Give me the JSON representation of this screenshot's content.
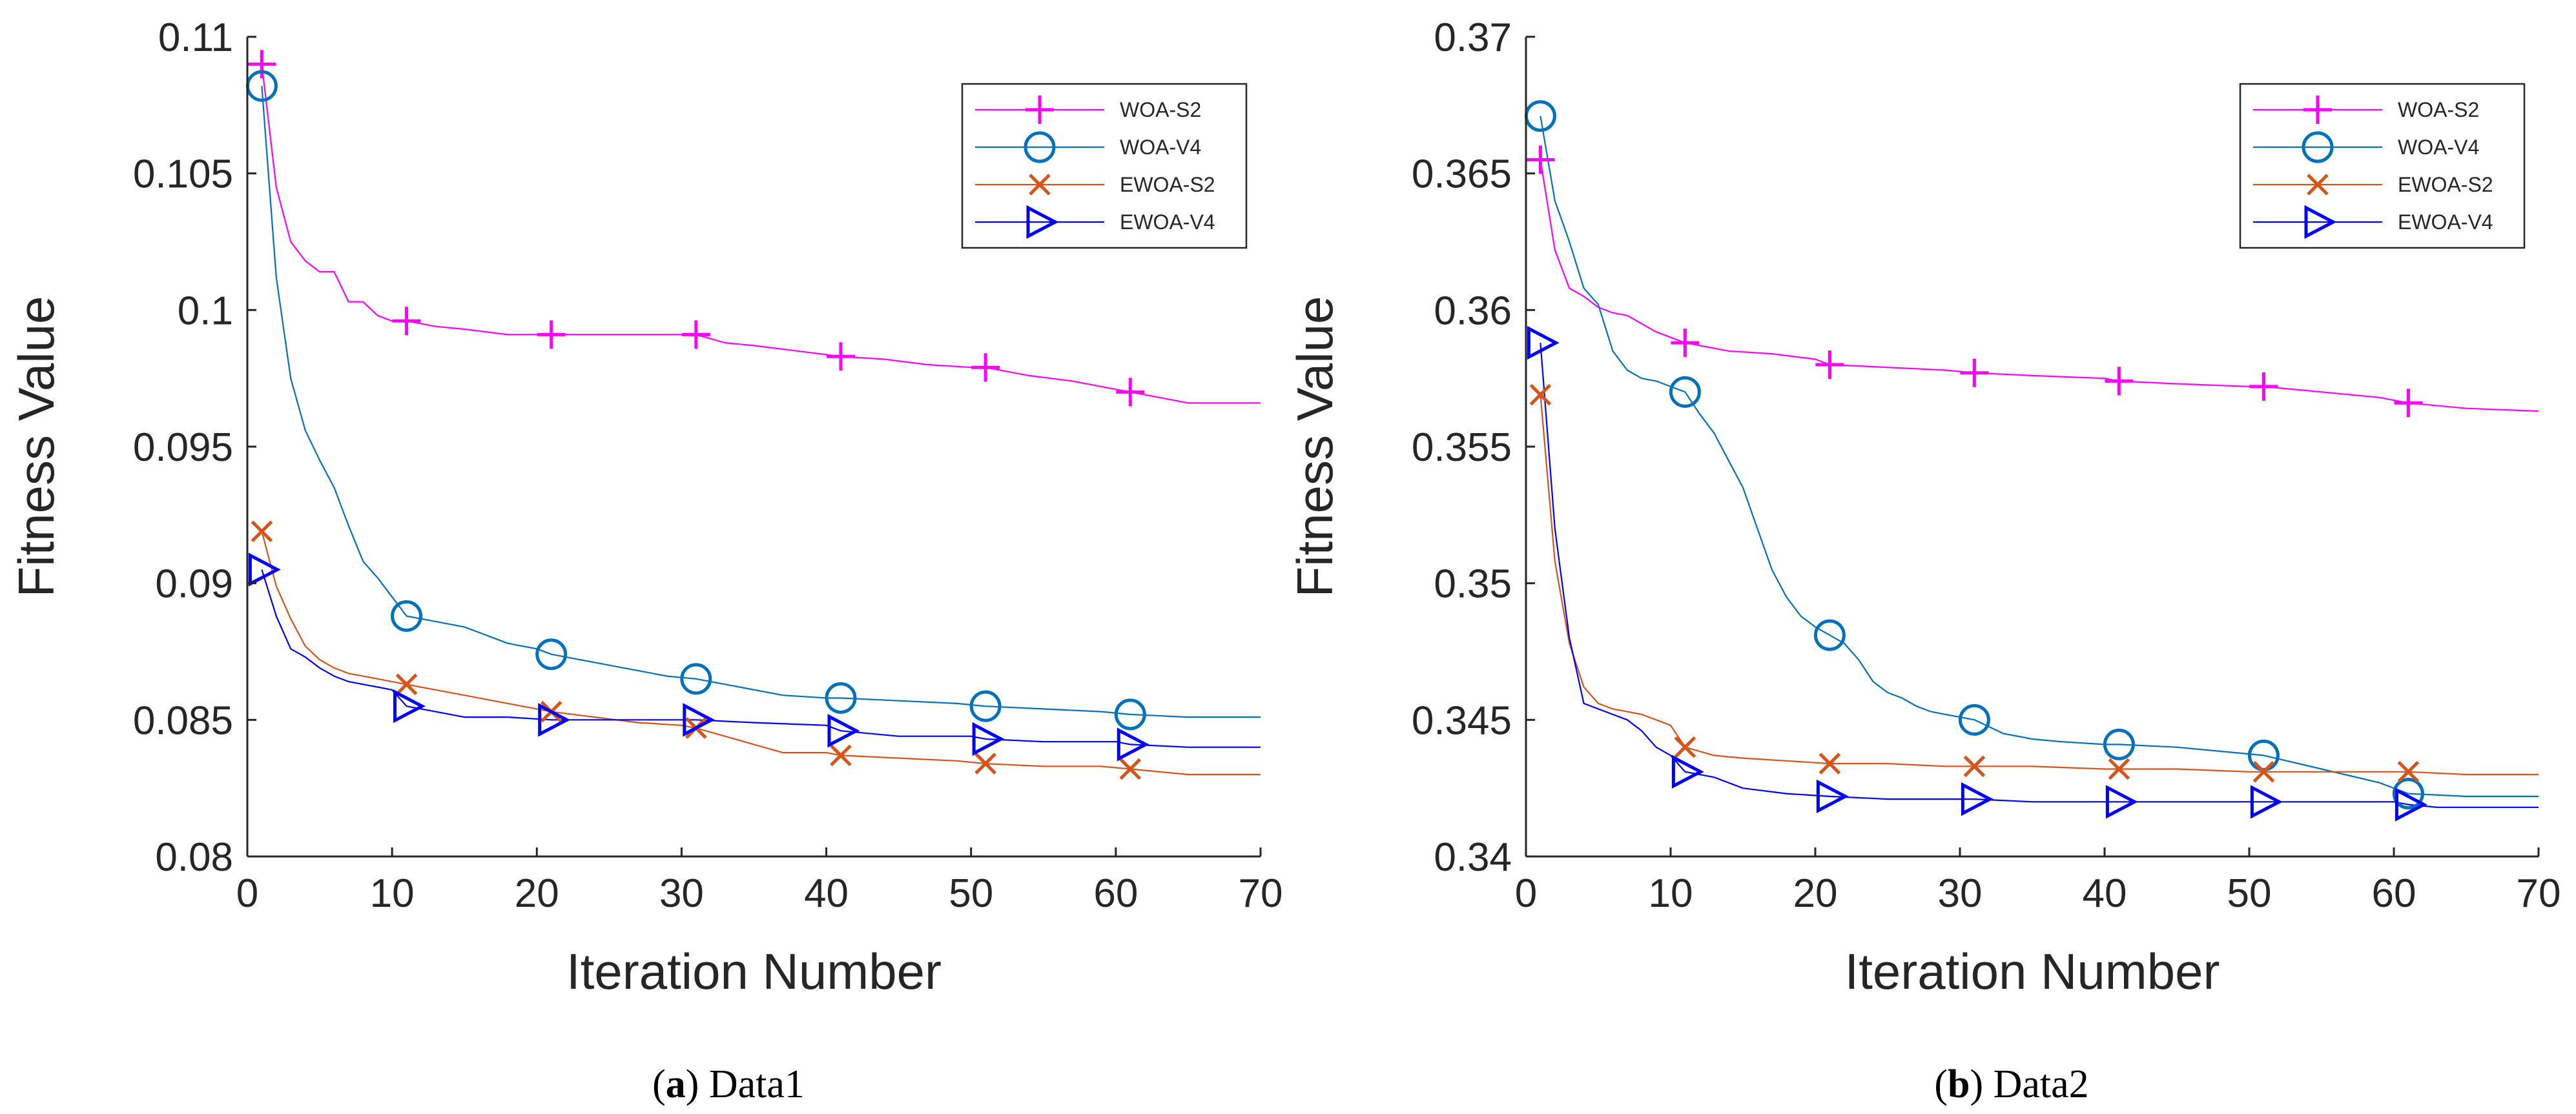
{
  "chart_data": [
    {
      "type": "line",
      "xlabel": "Iteration Number",
      "ylabel": "Fitness Value",
      "xlim": [
        0,
        70
      ],
      "ylim": [
        0.08,
        0.11
      ],
      "xticks": [
        0,
        10,
        20,
        30,
        40,
        50,
        60,
        70
      ],
      "yticks": [
        0.08,
        0.085,
        0.09,
        0.095,
        0.1,
        0.105,
        0.11
      ],
      "xtick_labels": [
        "0",
        "10",
        "20",
        "30",
        "40",
        "50",
        "60",
        "70"
      ],
      "ytick_labels": [
        "0.08",
        "0.085",
        "0.09",
        "0.095",
        "0.1",
        "0.105",
        "0.11"
      ],
      "grid": false,
      "legend_position": "top-right",
      "caption": {
        "letter": "a",
        "text": "Data1"
      },
      "series": [
        {
          "name": "WOA-S2",
          "color": "#FF00FF",
          "marker": "plus",
          "x": [
            1,
            2,
            3,
            4,
            5,
            6,
            7,
            8,
            9,
            10,
            11,
            13,
            15,
            18,
            20,
            21,
            25,
            29,
            31,
            33,
            35,
            38,
            41,
            44,
            47,
            50,
            51,
            54,
            57,
            59,
            61,
            63,
            65,
            70
          ],
          "y": [
            0.109,
            0.1045,
            0.1025,
            0.1018,
            0.1014,
            0.1014,
            0.1003,
            0.1003,
            0.0998,
            0.0996,
            0.0996,
            0.0994,
            0.0993,
            0.0991,
            0.0991,
            0.0991,
            0.0991,
            0.0991,
            0.0991,
            0.0988,
            0.0987,
            0.0985,
            0.0983,
            0.0982,
            0.098,
            0.0979,
            0.0979,
            0.0976,
            0.0974,
            0.0972,
            0.097,
            0.0968,
            0.0966,
            0.0966
          ]
        },
        {
          "name": "WOA-V4",
          "color": "#0072BD",
          "marker": "circle",
          "x": [
            1,
            2,
            3,
            4,
            5,
            6,
            7,
            8,
            9,
            10,
            11,
            13,
            15,
            18,
            20,
            21,
            24,
            27,
            29,
            31,
            34,
            37,
            40,
            41,
            45,
            49,
            51,
            55,
            59,
            61,
            65,
            70
          ],
          "y": [
            0.1082,
            0.1012,
            0.0975,
            0.0956,
            0.0945,
            0.0935,
            0.0921,
            0.0908,
            0.0902,
            0.0895,
            0.0888,
            0.0886,
            0.0884,
            0.0878,
            0.0876,
            0.0874,
            0.0871,
            0.0868,
            0.0866,
            0.0865,
            0.0862,
            0.0859,
            0.0858,
            0.0858,
            0.0857,
            0.0856,
            0.0855,
            0.0854,
            0.0853,
            0.0852,
            0.0851,
            0.0851
          ]
        },
        {
          "name": "EWOA-S2",
          "color": "#D95319",
          "marker": "cross",
          "x": [
            1,
            2,
            3,
            4,
            5,
            6,
            7,
            8,
            9,
            10,
            11,
            13,
            15,
            17,
            19,
            21,
            24,
            27,
            30,
            31,
            33,
            35,
            37,
            40,
            41,
            45,
            49,
            51,
            55,
            59,
            61,
            65,
            70
          ],
          "y": [
            0.0919,
            0.0899,
            0.0887,
            0.0877,
            0.0872,
            0.0869,
            0.0867,
            0.0866,
            0.0865,
            0.0864,
            0.0863,
            0.0861,
            0.0859,
            0.0857,
            0.0855,
            0.0853,
            0.0851,
            0.0849,
            0.0848,
            0.0847,
            0.0844,
            0.0841,
            0.0838,
            0.0838,
            0.0837,
            0.0836,
            0.0835,
            0.0834,
            0.0833,
            0.0833,
            0.0832,
            0.083,
            0.083
          ]
        },
        {
          "name": "EWOA-V4",
          "color": "#0000FF",
          "marker": "triangle-right",
          "x": [
            1,
            2,
            3,
            4,
            5,
            6,
            7,
            8,
            9,
            10,
            11,
            13,
            15,
            18,
            21,
            25,
            29,
            31,
            35,
            40,
            41,
            45,
            50,
            51,
            55,
            60,
            61,
            65,
            70
          ],
          "y": [
            0.0905,
            0.0888,
            0.0876,
            0.0873,
            0.0869,
            0.0866,
            0.0864,
            0.0863,
            0.0862,
            0.0861,
            0.0855,
            0.0853,
            0.0851,
            0.0851,
            0.085,
            0.085,
            0.085,
            0.085,
            0.0849,
            0.0848,
            0.0846,
            0.0844,
            0.0844,
            0.0843,
            0.0842,
            0.0842,
            0.0841,
            0.084,
            0.084
          ]
        }
      ]
    },
    {
      "type": "line",
      "xlabel": "Iteration Number",
      "ylabel": "Fitness Value",
      "xlim": [
        0,
        70
      ],
      "ylim": [
        0.34,
        0.37
      ],
      "xticks": [
        0,
        10,
        20,
        30,
        40,
        50,
        60,
        70
      ],
      "yticks": [
        0.34,
        0.345,
        0.35,
        0.355,
        0.36,
        0.365,
        0.37
      ],
      "xtick_labels": [
        "0",
        "10",
        "20",
        "30",
        "40",
        "50",
        "60",
        "70"
      ],
      "ytick_labels": [
        "0.34",
        "0.345",
        "0.35",
        "0.355",
        "0.36",
        "0.365",
        "0.37"
      ],
      "grid": false,
      "legend_position": "top-right",
      "caption": {
        "letter": "b",
        "text": "Data2"
      },
      "series": [
        {
          "name": "WOA-S2",
          "color": "#FF00FF",
          "marker": "plus",
          "x": [
            1,
            2,
            3,
            4,
            5,
            6,
            7,
            8,
            9,
            10,
            11,
            14,
            17,
            20,
            21,
            25,
            29,
            31,
            35,
            40,
            41,
            45,
            50,
            51,
            55,
            59,
            61,
            65,
            70
          ],
          "y": [
            0.3655,
            0.3622,
            0.3608,
            0.3605,
            0.3601,
            0.3599,
            0.3598,
            0.3595,
            0.3592,
            0.359,
            0.3588,
            0.3585,
            0.3584,
            0.3582,
            0.358,
            0.3579,
            0.3578,
            0.3577,
            0.3576,
            0.3575,
            0.3574,
            0.3573,
            0.3572,
            0.3572,
            0.357,
            0.3568,
            0.3566,
            0.3564,
            0.3563
          ]
        },
        {
          "name": "WOA-V4",
          "color": "#0072BD",
          "marker": "circle",
          "x": [
            1,
            2,
            3,
            4,
            5,
            6,
            7,
            8,
            9,
            10,
            11,
            12,
            13,
            14,
            15,
            16,
            17,
            18,
            19,
            20,
            21,
            22,
            23,
            24,
            25,
            26,
            27,
            28,
            29,
            30,
            31,
            33,
            35,
            37,
            40,
            41,
            45,
            49,
            51,
            55,
            59,
            61,
            65,
            70
          ],
          "y": [
            0.3671,
            0.364,
            0.3625,
            0.3608,
            0.3602,
            0.3585,
            0.3578,
            0.3575,
            0.3574,
            0.3572,
            0.357,
            0.3562,
            0.3555,
            0.3545,
            0.3535,
            0.352,
            0.3505,
            0.3495,
            0.3488,
            0.3484,
            0.3481,
            0.3478,
            0.3472,
            0.3464,
            0.346,
            0.3458,
            0.3455,
            0.3453,
            0.3452,
            0.3451,
            0.345,
            0.3445,
            0.3443,
            0.3442,
            0.3441,
            0.3441,
            0.344,
            0.3438,
            0.3437,
            0.3432,
            0.3427,
            0.3423,
            0.3422,
            0.3422
          ]
        },
        {
          "name": "EWOA-S2",
          "color": "#D95319",
          "marker": "cross",
          "x": [
            1,
            2,
            3,
            4,
            5,
            6,
            7,
            8,
            9,
            10,
            11,
            13,
            15,
            18,
            21,
            25,
            29,
            31,
            35,
            40,
            41,
            45,
            50,
            51,
            55,
            60,
            61,
            65,
            70
          ],
          "y": [
            0.3569,
            0.3508,
            0.3478,
            0.3462,
            0.3456,
            0.3454,
            0.3453,
            0.3452,
            0.345,
            0.3448,
            0.344,
            0.3437,
            0.3436,
            0.3435,
            0.3434,
            0.3434,
            0.3433,
            0.3433,
            0.3433,
            0.3432,
            0.3432,
            0.3432,
            0.3431,
            0.3431,
            0.3431,
            0.3431,
            0.3431,
            0.343,
            0.343
          ]
        },
        {
          "name": "EWOA-V4",
          "color": "#0000FF",
          "marker": "triangle-right",
          "x": [
            1,
            2,
            3,
            4,
            5,
            6,
            7,
            8,
            9,
            10,
            11,
            13,
            15,
            18,
            21,
            25,
            29,
            31,
            35,
            40,
            41,
            45,
            50,
            51,
            55,
            60,
            61,
            63,
            65,
            70
          ],
          "y": [
            0.3588,
            0.352,
            0.348,
            0.3456,
            0.3454,
            0.3452,
            0.345,
            0.3446,
            0.344,
            0.3437,
            0.3431,
            0.3429,
            0.3425,
            0.3423,
            0.3422,
            0.3421,
            0.3421,
            0.3421,
            0.342,
            0.342,
            0.342,
            0.342,
            0.342,
            0.342,
            0.342,
            0.342,
            0.3419,
            0.3418,
            0.3418,
            0.3418
          ]
        }
      ]
    }
  ]
}
